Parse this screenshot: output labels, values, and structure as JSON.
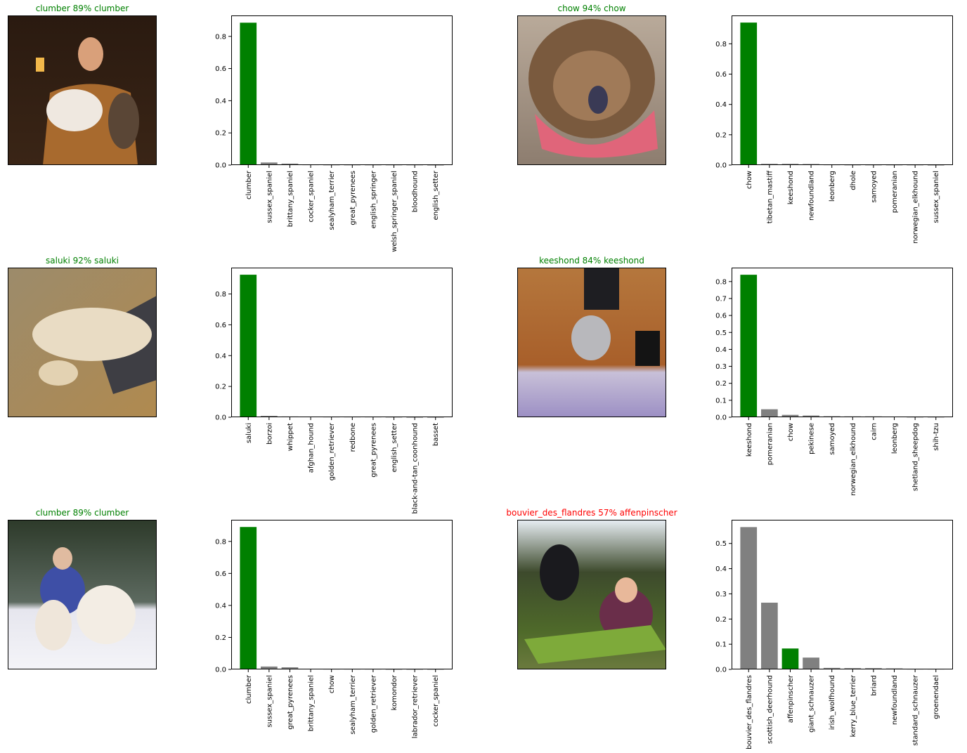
{
  "colors": {
    "correct": "#008000",
    "incorrect": "#ff0000",
    "bar_default": "#808080",
    "bar_true": "#008000"
  },
  "chart_data": [
    {
      "type": "bar",
      "title": "clumber 89% clumber",
      "correct": true,
      "true_label": "clumber",
      "categories": [
        "clumber",
        "sussex_spaniel",
        "brittany_spaniel",
        "cocker_spaniel",
        "sealyham_terrier",
        "great_pyrenees",
        "english_springer",
        "welsh_springer_spaniel",
        "bloodhound",
        "english_setter"
      ],
      "values": [
        0.885,
        0.016,
        0.009,
        0.003,
        0.002,
        0.002,
        0.002,
        0.002,
        0.002,
        0.001
      ],
      "yticks": [
        0.0,
        0.2,
        0.4,
        0.6,
        0.8
      ],
      "ylim": [
        0,
        0.93
      ]
    },
    {
      "type": "bar",
      "title": "chow 94% chow",
      "correct": true,
      "true_label": "chow",
      "categories": [
        "chow",
        "tibetan_mastiff",
        "keeshond",
        "newfoundland",
        "leonberg",
        "dhole",
        "samoyed",
        "pomeranian",
        "norwegian_elkhound",
        "sussex_spaniel"
      ],
      "values": [
        0.94,
        0.008,
        0.008,
        0.007,
        0.003,
        0.002,
        0.002,
        0.002,
        0.002,
        0.001
      ],
      "yticks": [
        0.0,
        0.2,
        0.4,
        0.6,
        0.8
      ],
      "ylim": [
        0,
        0.987
      ]
    },
    {
      "type": "bar",
      "title": "saluki 92% saluki",
      "correct": true,
      "true_label": "saluki",
      "categories": [
        "saluki",
        "borzoi",
        "whippet",
        "afghan_hound",
        "golden_retriever",
        "redbone",
        "great_pyrenees",
        "english_setter",
        "black-and-tan_coonhound",
        "basset"
      ],
      "values": [
        0.925,
        0.009,
        0.005,
        0.004,
        0.003,
        0.003,
        0.003,
        0.002,
        0.001,
        0.001
      ],
      "yticks": [
        0.0,
        0.2,
        0.4,
        0.6,
        0.8
      ],
      "ylim": [
        0,
        0.971
      ]
    },
    {
      "type": "bar",
      "title": "keeshond 84% keeshond",
      "correct": true,
      "true_label": "keeshond",
      "categories": [
        "keeshond",
        "pomeranian",
        "chow",
        "pekinese",
        "samoyed",
        "norwegian_elkhound",
        "cairn",
        "leonberg",
        "shetland_sheepdog",
        "shih-tzu"
      ],
      "values": [
        0.84,
        0.047,
        0.014,
        0.01,
        0.006,
        0.005,
        0.005,
        0.004,
        0.002,
        0.002
      ],
      "yticks": [
        0.0,
        0.1,
        0.2,
        0.3,
        0.4,
        0.5,
        0.6,
        0.7,
        0.8
      ],
      "ylim": [
        0,
        0.882
      ]
    },
    {
      "type": "bar",
      "title": "clumber 89% clumber",
      "correct": true,
      "true_label": "clumber",
      "categories": [
        "clumber",
        "sussex_spaniel",
        "great_pyrenees",
        "brittany_spaniel",
        "chow",
        "sealyham_terrier",
        "golden_retriever",
        "komondor",
        "labrador_retriever",
        "cocker_spaniel"
      ],
      "values": [
        0.89,
        0.018,
        0.013,
        0.004,
        0.003,
        0.003,
        0.003,
        0.002,
        0.002,
        0.002
      ],
      "yticks": [
        0.0,
        0.2,
        0.4,
        0.6,
        0.8
      ],
      "ylim": [
        0,
        0.935
      ]
    },
    {
      "type": "bar",
      "title": "bouvier_des_flandres 57% affenpinscher",
      "correct": false,
      "true_label": "affenpinscher",
      "categories": [
        "bouvier_des_flandres",
        "scottish_deerhound",
        "affenpinscher",
        "giant_schnauzer",
        "irish_wolfhound",
        "kerry_blue_terrier",
        "briard",
        "newfoundland",
        "standard_schnauzer",
        "groenendael"
      ],
      "values": [
        0.565,
        0.265,
        0.083,
        0.047,
        0.006,
        0.005,
        0.005,
        0.004,
        0.002,
        0.002
      ],
      "yticks": [
        0.0,
        0.1,
        0.2,
        0.3,
        0.4,
        0.5
      ],
      "ylim": [
        0,
        0.594
      ]
    }
  ],
  "photos": [
    {
      "scene": "man-holding-dog-and-bird"
    },
    {
      "scene": "chow-with-pink-scarf"
    },
    {
      "scene": "saluki-lying-on-floor"
    },
    {
      "scene": "keeshond-in-room"
    },
    {
      "scene": "man-with-two-clumbers-in-snow"
    },
    {
      "scene": "dog-and-girl-on-grass-table"
    }
  ]
}
